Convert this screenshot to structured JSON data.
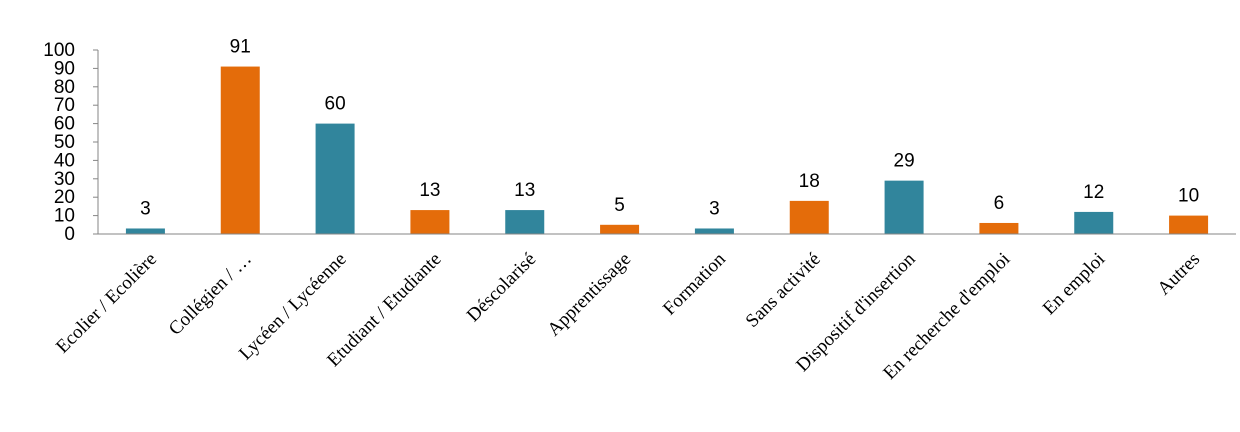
{
  "chart_data": {
    "type": "bar",
    "categories": [
      "Ecolier / Ecolière",
      "Collégien / …",
      "Lycéen / Lycéenne",
      "Etudiant / Etudiante",
      "Déscolarisé",
      "Apprentissage",
      "Formation",
      "Sans activité",
      "Dispositif d'insertion",
      "En recherche d'emploi",
      "En emploi",
      "Autres"
    ],
    "values": [
      3,
      91,
      60,
      13,
      13,
      5,
      3,
      18,
      29,
      6,
      12,
      10
    ],
    "colors": [
      "#31859C",
      "#E46C0A",
      "#31859C",
      "#E46C0A",
      "#31859C",
      "#E46C0A",
      "#31859C",
      "#E46C0A",
      "#31859C",
      "#E46C0A",
      "#31859C",
      "#E46C0A"
    ],
    "yticks": [
      0,
      10,
      20,
      30,
      40,
      50,
      60,
      70,
      80,
      90,
      100
    ],
    "ylim": [
      0,
      100
    ],
    "grid": false,
    "data_labels": true
  }
}
